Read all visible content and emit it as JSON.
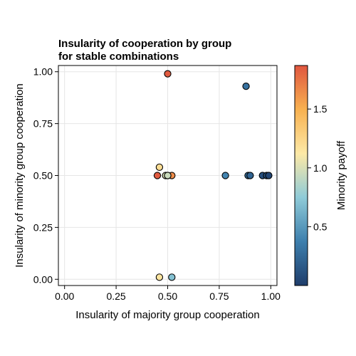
{
  "chart_data": {
    "type": "scatter",
    "title": "Insularity of cooperation by group\nfor stable combinations",
    "xlabel": "Insularity of majority group cooperation",
    "ylabel": "Insularity of minority group cooperation",
    "colorbar_label": "Minority payoff",
    "xlim": [
      -0.03,
      1.03
    ],
    "ylim": [
      -0.03,
      1.03
    ],
    "xticks": [
      "0.00",
      "0.25",
      "0.50",
      "0.75",
      "1.00"
    ],
    "yticks": [
      "0.00",
      "0.25",
      "0.50",
      "0.75",
      "1.00"
    ],
    "colorbar_range": [
      0.0,
      1.87
    ],
    "colorbar_ticks": [
      "0.5",
      "1.0",
      "1.5"
    ],
    "grid": true,
    "colormap": [
      "#1f3d6b",
      "#3d7fad",
      "#8fcbd8",
      "#fde9a6",
      "#f8b150",
      "#e0563f"
    ],
    "points": [
      {
        "x": 0.5,
        "y": 0.99,
        "c": 1.85
      },
      {
        "x": 0.88,
        "y": 0.93,
        "c": 0.3
      },
      {
        "x": 0.46,
        "y": 0.54,
        "c": 1.2
      },
      {
        "x": 0.45,
        "y": 0.5,
        "c": 1.85
      },
      {
        "x": 0.52,
        "y": 0.5,
        "c": 1.65
      },
      {
        "x": 0.49,
        "y": 0.5,
        "c": 1.0
      },
      {
        "x": 0.5,
        "y": 0.5,
        "c": 1.05
      },
      {
        "x": 0.5,
        "y": 0.5,
        "c": 0.95
      },
      {
        "x": 0.78,
        "y": 0.5,
        "c": 0.4
      },
      {
        "x": 0.89,
        "y": 0.5,
        "c": 0.28
      },
      {
        "x": 0.9,
        "y": 0.5,
        "c": 0.22
      },
      {
        "x": 0.96,
        "y": 0.5,
        "c": 0.1
      },
      {
        "x": 0.98,
        "y": 0.5,
        "c": 0.15
      },
      {
        "x": 0.99,
        "y": 0.5,
        "c": 0.05
      },
      {
        "x": 0.46,
        "y": 0.01,
        "c": 1.15
      },
      {
        "x": 0.52,
        "y": 0.01,
        "c": 0.7
      }
    ]
  }
}
